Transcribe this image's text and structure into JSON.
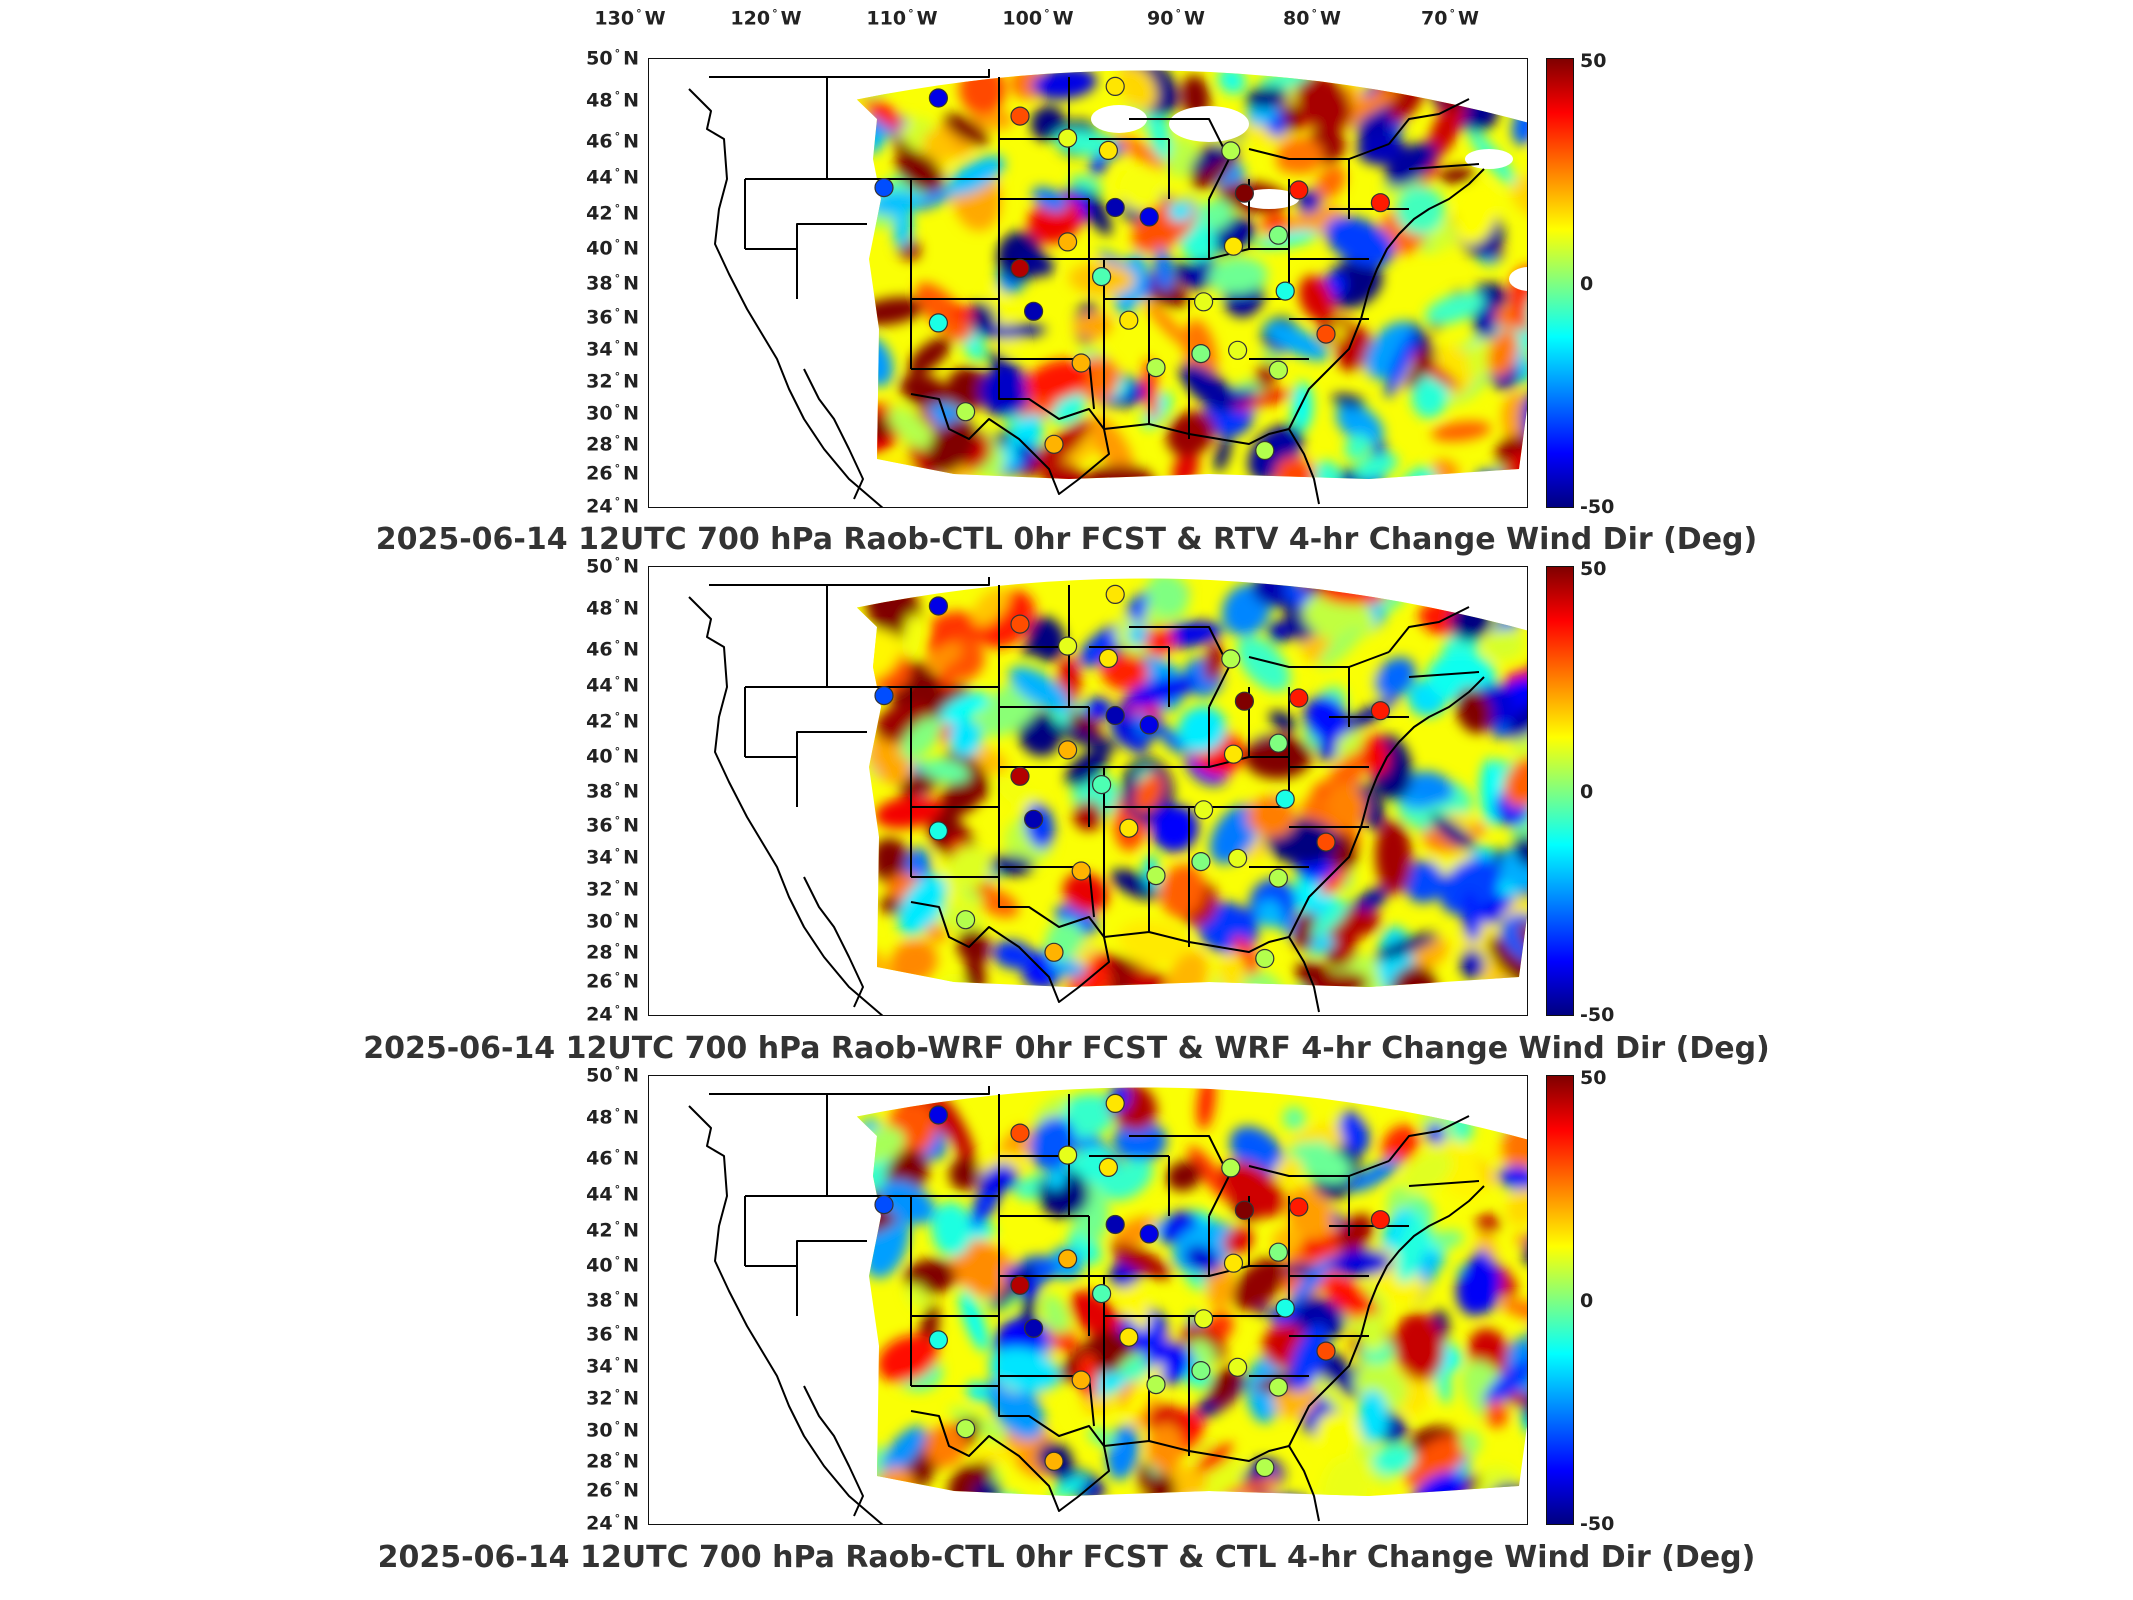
{
  "lon_labels": [
    {
      "deg": "130",
      "hem": "W"
    },
    {
      "deg": "120",
      "hem": "W"
    },
    {
      "deg": "110",
      "hem": "W"
    },
    {
      "deg": "100",
      "hem": "W"
    },
    {
      "deg": "90",
      "hem": "W"
    },
    {
      "deg": "80",
      "hem": "W"
    },
    {
      "deg": "70",
      "hem": "W"
    }
  ],
  "lat_labels": [
    {
      "deg": "50",
      "hem": "N"
    },
    {
      "deg": "48",
      "hem": "N"
    },
    {
      "deg": "46",
      "hem": "N"
    },
    {
      "deg": "44",
      "hem": "N"
    },
    {
      "deg": "42",
      "hem": "N"
    },
    {
      "deg": "40",
      "hem": "N"
    },
    {
      "deg": "38",
      "hem": "N"
    },
    {
      "deg": "36",
      "hem": "N"
    },
    {
      "deg": "34",
      "hem": "N"
    },
    {
      "deg": "32",
      "hem": "N"
    },
    {
      "deg": "30",
      "hem": "N"
    },
    {
      "deg": "28",
      "hem": "N"
    },
    {
      "deg": "26",
      "hem": "N"
    },
    {
      "deg": "24",
      "hem": "N"
    }
  ],
  "colorbar": {
    "max_label": "50",
    "mid_label": "0",
    "min_label": "-50",
    "colors": [
      "#800000",
      "#ff0000",
      "#ff8000",
      "#ffff00",
      "#80ff80",
      "#00ffff",
      "#0080ff",
      "#0000ff",
      "#000080"
    ]
  },
  "panels": [
    {
      "title": "2025-06-14 12UTC 700 hPa Raob-CTL 0hr FCST & RTV 4-hr Change Wind Dir (Deg)"
    },
    {
      "title": "2025-06-14 12UTC 700 hPa Raob-WRF 0hr FCST & WRF 4-hr Change Wind Dir (Deg)"
    },
    {
      "title": "2025-06-14 12UTC 700 hPa Raob-CTL 0hr FCST & CTL 4-hr Change Wind Dir (Deg)"
    }
  ],
  "stations": [
    {
      "lon": -106,
      "lat": 48,
      "v": [
        -40,
        -40,
        -40
      ]
    },
    {
      "lon": -100,
      "lat": 46.8,
      "v": [
        30,
        30,
        30
      ]
    },
    {
      "lon": -96.5,
      "lat": 45.5,
      "v": [
        10,
        10,
        10
      ]
    },
    {
      "lon": -93.5,
      "lat": 44.8,
      "v": [
        15,
        15,
        15
      ]
    },
    {
      "lon": -93,
      "lat": 48.5,
      "v": [
        15,
        15,
        15
      ]
    },
    {
      "lon": -84.5,
      "lat": 45,
      "v": [
        5,
        5,
        5
      ]
    },
    {
      "lon": -83.5,
      "lat": 42.6,
      "v": [
        50,
        50,
        50
      ]
    },
    {
      "lon": -79.5,
      "lat": 43,
      "v": [
        35,
        35,
        35
      ]
    },
    {
      "lon": -73.5,
      "lat": 42.7,
      "v": [
        35,
        35,
        35
      ]
    },
    {
      "lon": -110,
      "lat": 43,
      "v": [
        -30,
        -30,
        -30
      ]
    },
    {
      "lon": -100,
      "lat": 38,
      "v": [
        45,
        45,
        45
      ]
    },
    {
      "lon": -96.5,
      "lat": 39.5,
      "v": [
        20,
        20,
        20
      ]
    },
    {
      "lon": -90.5,
      "lat": 41,
      "v": [
        -40,
        -40,
        -40
      ]
    },
    {
      "lon": -93,
      "lat": 41.5,
      "v": [
        -45,
        -45,
        -45
      ]
    },
    {
      "lon": -84.3,
      "lat": 39.5,
      "v": [
        15,
        15,
        15
      ]
    },
    {
      "lon": -81,
      "lat": 40.3,
      "v": [
        0,
        0,
        0
      ]
    },
    {
      "lon": -106,
      "lat": 35,
      "v": [
        -10,
        -10,
        -10
      ]
    },
    {
      "lon": -99,
      "lat": 35.5,
      "v": [
        -45,
        -45,
        -45
      ]
    },
    {
      "lon": -94,
      "lat": 37.5,
      "v": [
        -5,
        -5,
        -5
      ]
    },
    {
      "lon": -92,
      "lat": 35,
      "v": [
        15,
        15,
        15
      ]
    },
    {
      "lon": -86.5,
      "lat": 36.2,
      "v": [
        10,
        10,
        10
      ]
    },
    {
      "lon": -80.5,
      "lat": 37.1,
      "v": [
        -10,
        -10,
        -10
      ]
    },
    {
      "lon": -77.5,
      "lat": 34.8,
      "v": [
        30,
        30,
        30
      ]
    },
    {
      "lon": -95.5,
      "lat": 32.5,
      "v": [
        20,
        20,
        20
      ]
    },
    {
      "lon": -90,
      "lat": 32.3,
      "v": [
        5,
        5,
        5
      ]
    },
    {
      "lon": -86.7,
      "lat": 33.2,
      "v": [
        0,
        0,
        0
      ]
    },
    {
      "lon": -84,
      "lat": 33.5,
      "v": [
        10,
        10,
        10
      ]
    },
    {
      "lon": -81,
      "lat": 32.5,
      "v": [
        5,
        5,
        5
      ]
    },
    {
      "lon": -104,
      "lat": 29.8,
      "v": [
        5,
        5,
        5
      ]
    },
    {
      "lon": -97.5,
      "lat": 27.8,
      "v": [
        20,
        20,
        20
      ]
    },
    {
      "lon": -82,
      "lat": 27.8,
      "v": [
        5,
        5,
        5
      ]
    }
  ]
}
